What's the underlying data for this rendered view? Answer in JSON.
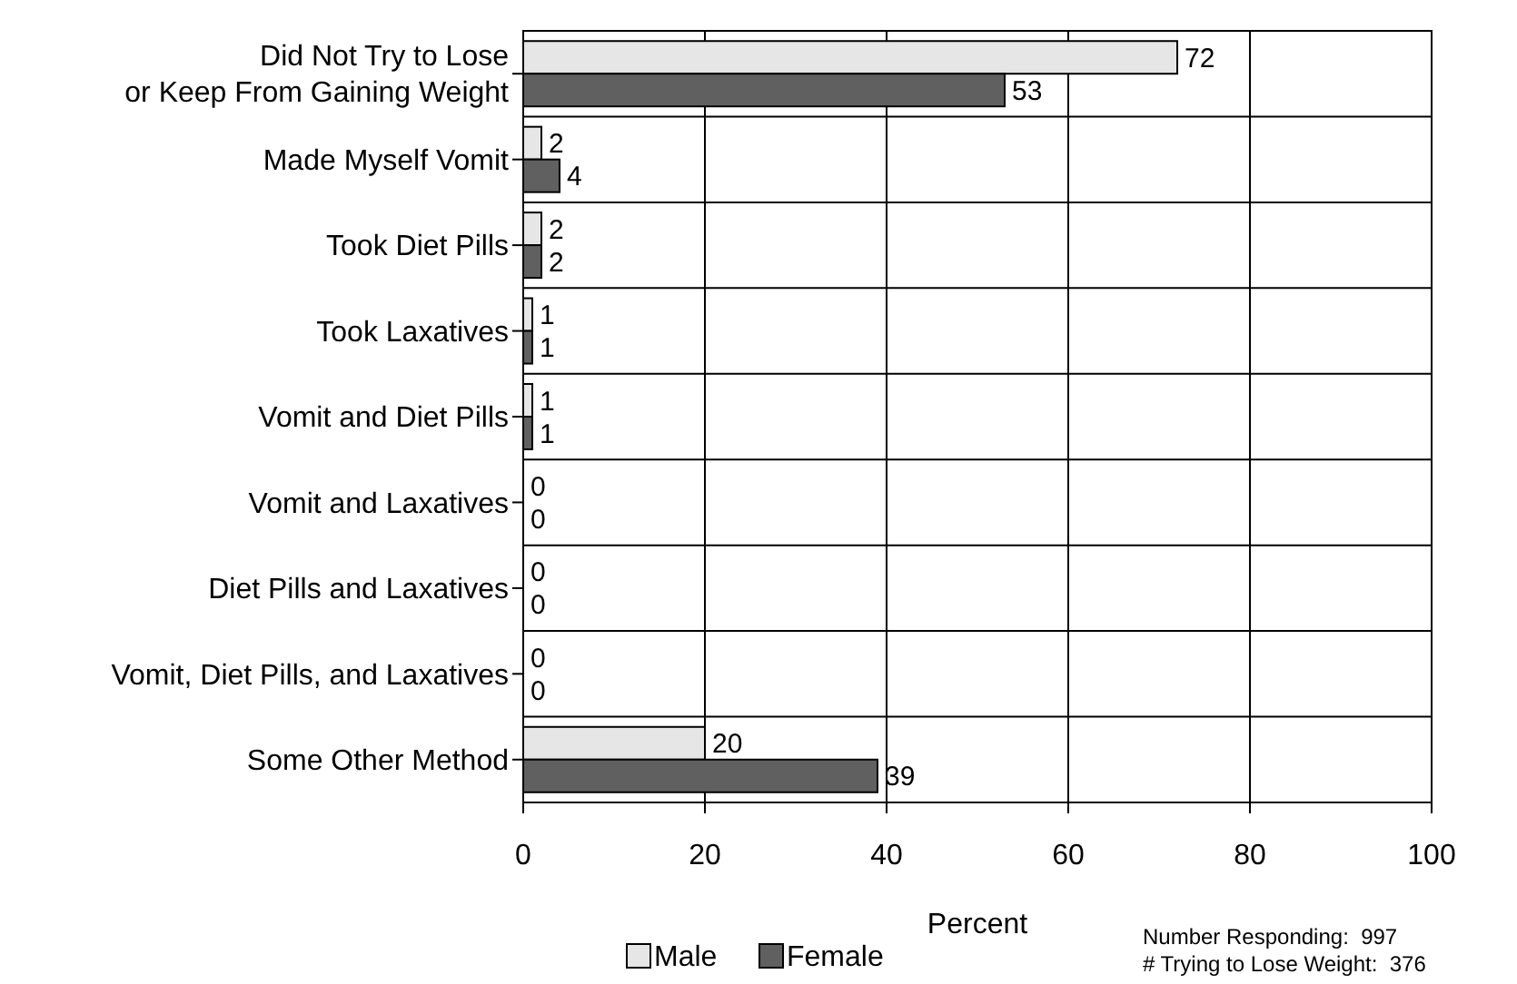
{
  "chart_data": {
    "type": "bar",
    "orientation": "horizontal",
    "xlabel": "Percent",
    "categories": [
      "Did Not Try to Lose\nor Keep From Gaining Weight",
      "Made Myself Vomit",
      "Took Diet Pills",
      "Took Laxatives",
      "Vomit and Diet Pills",
      "Vomit and Laxatives",
      "Diet Pills and Laxatives",
      "Vomit, Diet Pills, and Laxatives",
      "Some Other Method"
    ],
    "series": [
      {
        "name": "Male",
        "color": "#e6e6e6",
        "values": [
          72,
          2,
          2,
          1,
          1,
          0,
          0,
          0,
          20
        ]
      },
      {
        "name": "Female",
        "color": "#606060",
        "values": [
          53,
          4,
          2,
          1,
          1,
          0,
          0,
          0,
          39
        ]
      }
    ],
    "xlim": [
      0,
      100
    ],
    "xticks": [
      0,
      20,
      40,
      60,
      80,
      100
    ],
    "grid": true,
    "data_labels": true,
    "legend": "bottom",
    "annotations": [
      "Number Responding:  997",
      "# Trying to Lose Weight:  376"
    ]
  }
}
